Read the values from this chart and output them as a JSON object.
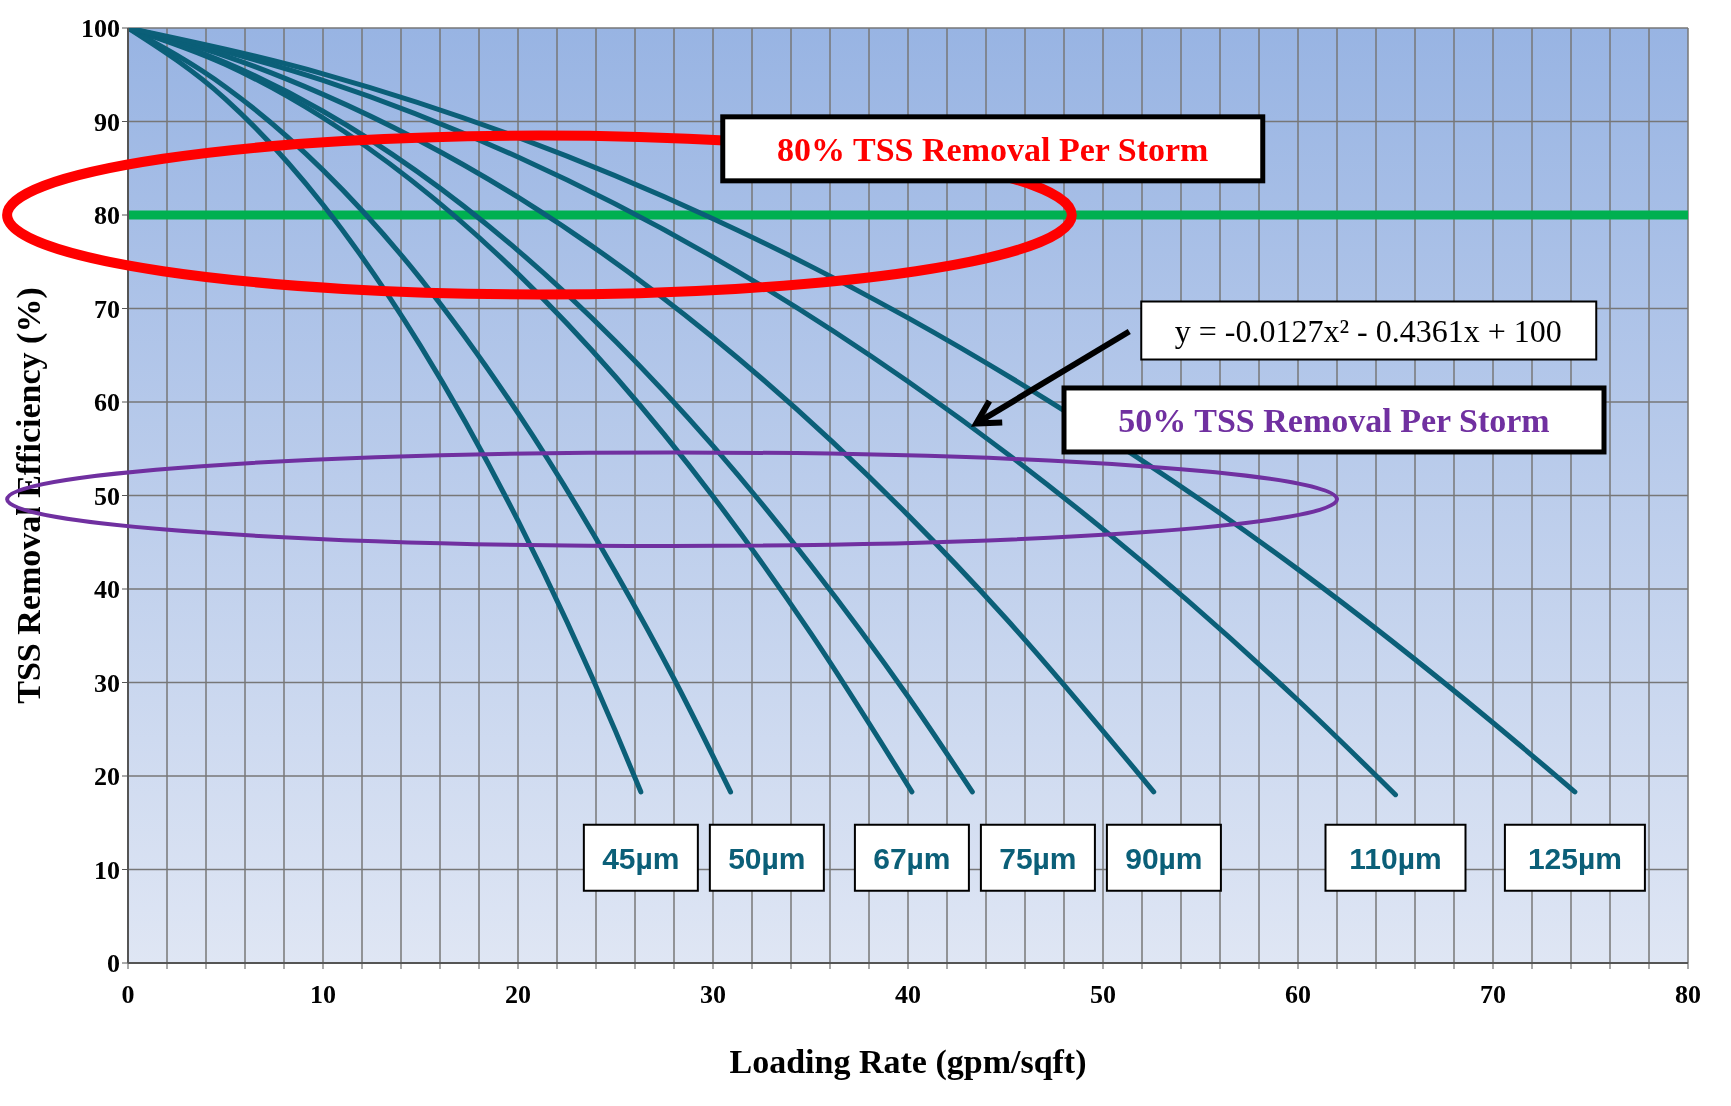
{
  "chart_data": {
    "type": "line",
    "xlabel": "Loading Rate (gpm/sqft)",
    "ylabel": "TSS Removal Efficiency (%)",
    "xlim": [
      0,
      80
    ],
    "xticks": [
      0,
      {
        "value": 2,
        "label": null
      },
      {
        "value": 4,
        "label": null
      },
      {
        "value": 6,
        "label": null
      },
      {
        "value": 8,
        "label": null
      },
      10,
      {
        "value": 12,
        "label": null
      },
      {
        "value": 14,
        "label": null
      },
      {
        "value": 16,
        "label": null
      },
      {
        "value": 18,
        "label": null
      },
      20,
      {
        "value": 22,
        "label": null
      },
      {
        "value": 24,
        "label": null
      },
      {
        "value": 26,
        "label": null
      },
      {
        "value": 28,
        "label": null
      },
      30,
      {
        "value": 32,
        "label": null
      },
      {
        "value": 34,
        "label": null
      },
      {
        "value": 36,
        "label": null
      },
      {
        "value": 38,
        "label": null
      },
      40,
      {
        "value": 42,
        "label": null
      },
      {
        "value": 44,
        "label": null
      },
      {
        "value": 46,
        "label": null
      },
      {
        "value": 48,
        "label": null
      },
      50,
      {
        "value": 52,
        "label": null
      },
      {
        "value": 54,
        "label": null
      },
      {
        "value": 56,
        "label": null
      },
      {
        "value": 58,
        "label": null
      },
      60,
      {
        "value": 62,
        "label": null
      },
      {
        "value": 64,
        "label": null
      },
      {
        "value": 66,
        "label": null
      },
      {
        "value": 68,
        "label": null
      },
      70,
      {
        "value": 72,
        "label": null
      },
      {
        "value": 74,
        "label": null
      },
      {
        "value": 76,
        "label": null
      },
      {
        "value": 78,
        "label": null
      },
      80
    ],
    "ylim": [
      0,
      100
    ],
    "yticks": [
      0,
      10,
      20,
      30,
      40,
      50,
      60,
      70,
      80,
      90,
      100
    ],
    "grid": true,
    "line_style": "solid",
    "series": [
      {
        "name": "45µm",
        "color": "#0b5f78",
        "x": [
          0,
          5,
          10,
          15,
          20,
          25,
          26.3
        ],
        "values": [
          100,
          92.4,
          81.1,
          66.0,
          47.3,
          24.8,
          18.3
        ]
      },
      {
        "name": "50µm",
        "color": "#0b5f78",
        "x": [
          0,
          5,
          10,
          15,
          20,
          25,
          28,
          30.9
        ],
        "values": [
          100,
          93.7,
          84.8,
          73.2,
          58.8,
          41.8,
          30.4,
          18.3
        ]
      },
      {
        "name": "67µm",
        "color": "#0b5f78",
        "x": [
          0,
          5,
          10,
          20,
          25,
          30,
          35,
          40.2
        ],
        "values": [
          100,
          96.1,
          90.4,
          73.7,
          62.7,
          49.9,
          35.3,
          18.3
        ]
      },
      {
        "name": "75µm",
        "color": "#0b5f78",
        "x": [
          0,
          5,
          10,
          20,
          25,
          30,
          35,
          40,
          43.3
        ],
        "values": [
          100,
          96.3,
          91.1,
          76.2,
          66.5,
          55.3,
          42.6,
          28.5,
          18.3
        ]
      },
      {
        "name": "90µm",
        "color": "#0b5f78",
        "x": [
          0,
          5,
          10,
          20,
          30,
          40,
          45,
          52.6
        ],
        "values": [
          100,
          97.0,
          92.9,
          81.9,
          66.9,
          47.9,
          36.9,
          18.3
        ]
      },
      {
        "name": "110µm",
        "color": "#0b5f78",
        "x": [
          0,
          10,
          20,
          30,
          40,
          50,
          60,
          65
        ],
        "values": [
          100,
          94.4,
          86.2,
          75.5,
          62.2,
          46.4,
          28.1,
          18.0
        ]
      },
      {
        "name": "125µm",
        "color": "#0b5f78",
        "x": [
          0,
          10,
          20,
          30,
          40,
          47,
          56,
          60,
          70,
          74.2
        ],
        "values": [
          100,
          95.1,
          88.3,
          79.6,
          69.0,
          60.4,
          48.1,
          42.1,
          25.7,
          18.3
        ]
      }
    ],
    "ref_lines": [
      {
        "axis": "y",
        "value": 80,
        "color": "#00b050"
      }
    ],
    "annotations": [
      "80% TSS Removal Per Storm",
      "50% TSS Removal Per Storm",
      "y = -0.0127x² - 0.4361x + 100"
    ]
  }
}
